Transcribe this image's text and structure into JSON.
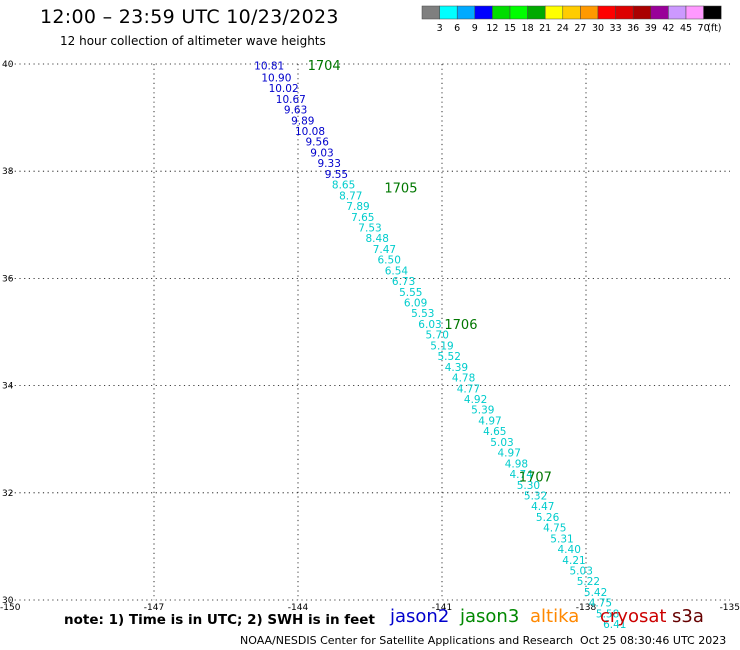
{
  "header": {
    "title": "12:00 – 23:59 UTC 10/23/2023",
    "subtitle": "12 hour collection of altimeter wave heights"
  },
  "color_scale": {
    "labels": [
      "3",
      "6",
      "9",
      "12",
      "15",
      "18",
      "21",
      "24",
      "27",
      "30",
      "33",
      "36",
      "39",
      "42",
      "45",
      "70"
    ],
    "unit": "(ft)",
    "colors": [
      "#7f7f7f",
      "#00ffff",
      "#00aaff",
      "#0000ff",
      "#00dd00",
      "#00ff00",
      "#00aa00",
      "#ffff00",
      "#ffcc00",
      "#ff9900",
      "#ff0000",
      "#dd0000",
      "#aa0000",
      "#990099",
      "#cc99ff",
      "#ff99ff",
      "#000000"
    ]
  },
  "map": {
    "lat_ticks": [
      "40",
      "38",
      "36",
      "34",
      "32",
      "30"
    ],
    "lon_ticks": [
      "-150",
      "-147",
      "-144",
      "-141",
      "-138",
      "-135"
    ],
    "lon_range": [
      -150,
      -135
    ],
    "lat_range": [
      30,
      40
    ],
    "time_labels": [
      {
        "text": "1704",
        "lon": -143.8,
        "lat": 39.98
      },
      {
        "text": "1705",
        "lon": -142.2,
        "lat": 37.7
      },
      {
        "text": "1706",
        "lon": -140.95,
        "lat": 35.15
      },
      {
        "text": "1707",
        "lon": -139.4,
        "lat": 32.3
      }
    ],
    "time_label_color": "#007700",
    "observations": [
      {
        "v": "10.81",
        "lon": -144.6,
        "lat": 39.97,
        "c": "#0000cc"
      },
      {
        "v": "10.90",
        "lon": -144.45,
        "lat": 39.75,
        "c": "#0000cc"
      },
      {
        "v": "10.02",
        "lon": -144.3,
        "lat": 39.55,
        "c": "#0000cc"
      },
      {
        "v": "10.67",
        "lon": -144.15,
        "lat": 39.35,
        "c": "#0000cc"
      },
      {
        "v": "9.63",
        "lon": -144.05,
        "lat": 39.15,
        "c": "#0000cc"
      },
      {
        "v": "9.89",
        "lon": -143.9,
        "lat": 38.95,
        "c": "#0000cc"
      },
      {
        "v": "10.08",
        "lon": -143.75,
        "lat": 38.75,
        "c": "#0000cc"
      },
      {
        "v": "9.56",
        "lon": -143.6,
        "lat": 38.55,
        "c": "#0000cc"
      },
      {
        "v": "9.03",
        "lon": -143.5,
        "lat": 38.35,
        "c": "#0000cc"
      },
      {
        "v": "9.33",
        "lon": -143.35,
        "lat": 38.15,
        "c": "#0000cc"
      },
      {
        "v": "9.55",
        "lon": -143.2,
        "lat": 37.95,
        "c": "#0000cc"
      },
      {
        "v": "8.65",
        "lon": -143.05,
        "lat": 37.75,
        "c": "#00cccc"
      },
      {
        "v": "8.77",
        "lon": -142.9,
        "lat": 37.55,
        "c": "#00cccc"
      },
      {
        "v": "7.89",
        "lon": -142.75,
        "lat": 37.35,
        "c": "#00cccc"
      },
      {
        "v": "7.65",
        "lon": -142.65,
        "lat": 37.15,
        "c": "#00cccc"
      },
      {
        "v": "7.53",
        "lon": -142.5,
        "lat": 36.95,
        "c": "#00cccc"
      },
      {
        "v": "8.48",
        "lon": -142.35,
        "lat": 36.75,
        "c": "#00cccc"
      },
      {
        "v": "7.47",
        "lon": -142.2,
        "lat": 36.55,
        "c": "#00cccc"
      },
      {
        "v": "6.50",
        "lon": -142.1,
        "lat": 36.35,
        "c": "#00cccc"
      },
      {
        "v": "6.54",
        "lon": -141.95,
        "lat": 36.15,
        "c": "#00cccc"
      },
      {
        "v": "6.73",
        "lon": -141.8,
        "lat": 35.95,
        "c": "#00cccc"
      },
      {
        "v": "5.55",
        "lon": -141.65,
        "lat": 35.75,
        "c": "#00cccc"
      },
      {
        "v": "6.09",
        "lon": -141.55,
        "lat": 35.55,
        "c": "#00cccc"
      },
      {
        "v": "5.53",
        "lon": -141.4,
        "lat": 35.35,
        "c": "#00cccc"
      },
      {
        "v": "6.03",
        "lon": -141.25,
        "lat": 35.15,
        "c": "#00cccc"
      },
      {
        "v": "5.70",
        "lon": -141.1,
        "lat": 34.95,
        "c": "#00cccc"
      },
      {
        "v": "5.19",
        "lon": -141.0,
        "lat": 34.75,
        "c": "#00cccc"
      },
      {
        "v": "5.52",
        "lon": -140.85,
        "lat": 34.55,
        "c": "#00cccc"
      },
      {
        "v": "4.39",
        "lon": -140.7,
        "lat": 34.35,
        "c": "#00cccc"
      },
      {
        "v": "4.78",
        "lon": -140.55,
        "lat": 34.15,
        "c": "#00cccc"
      },
      {
        "v": "4.77",
        "lon": -140.45,
        "lat": 33.95,
        "c": "#00cccc"
      },
      {
        "v": "4.92",
        "lon": -140.3,
        "lat": 33.75,
        "c": "#00cccc"
      },
      {
        "v": "5.39",
        "lon": -140.15,
        "lat": 33.55,
        "c": "#00cccc"
      },
      {
        "v": "4.97",
        "lon": -140.0,
        "lat": 33.35,
        "c": "#00cccc"
      },
      {
        "v": "4.65",
        "lon": -139.9,
        "lat": 33.15,
        "c": "#00cccc"
      },
      {
        "v": "5.03",
        "lon": -139.75,
        "lat": 32.95,
        "c": "#00cccc"
      },
      {
        "v": "4.97",
        "lon": -139.6,
        "lat": 32.75,
        "c": "#00cccc"
      },
      {
        "v": "4.98",
        "lon": -139.45,
        "lat": 32.55,
        "c": "#00cccc"
      },
      {
        "v": "4.74",
        "lon": -139.35,
        "lat": 32.35,
        "c": "#00cccc"
      },
      {
        "v": "5.30",
        "lon": -139.2,
        "lat": 32.15,
        "c": "#00cccc"
      },
      {
        "v": "5.32",
        "lon": -139.05,
        "lat": 31.95,
        "c": "#00cccc"
      },
      {
        "v": "4.47",
        "lon": -138.9,
        "lat": 31.75,
        "c": "#00cccc"
      },
      {
        "v": "5.26",
        "lon": -138.8,
        "lat": 31.55,
        "c": "#00cccc"
      },
      {
        "v": "4.75",
        "lon": -138.65,
        "lat": 31.35,
        "c": "#00cccc"
      },
      {
        "v": "5.31",
        "lon": -138.5,
        "lat": 31.15,
        "c": "#00cccc"
      },
      {
        "v": "4.40",
        "lon": -138.35,
        "lat": 30.95,
        "c": "#00cccc"
      },
      {
        "v": "4.21",
        "lon": -138.25,
        "lat": 30.75,
        "c": "#00cccc"
      },
      {
        "v": "5.03",
        "lon": -138.1,
        "lat": 30.55,
        "c": "#00cccc"
      },
      {
        "v": "5.22",
        "lon": -137.95,
        "lat": 30.35,
        "c": "#00cccc"
      },
      {
        "v": "5.42",
        "lon": -137.8,
        "lat": 30.15,
        "c": "#00cccc"
      },
      {
        "v": "4.75",
        "lon": -137.7,
        "lat": 29.95,
        "c": "#00cccc"
      },
      {
        "v": "5.58",
        "lon": -137.55,
        "lat": 29.75,
        "c": "#00cccc"
      },
      {
        "v": "6.41",
        "lon": -137.4,
        "lat": 29.55,
        "c": "#00cccc"
      }
    ]
  },
  "footer": {
    "note": "note: 1) Time is in UTC; 2) SWH is in feet",
    "satellites": [
      {
        "name": "jason2",
        "color": "#0000cc"
      },
      {
        "name": "jason3",
        "color": "#008800"
      },
      {
        "name": "altika",
        "color": "#ff8800"
      },
      {
        "name": "cryosat",
        "color": "#cc0000"
      },
      {
        "name": "s3a",
        "color": "#660000"
      }
    ],
    "credit_left": "NOAA/NESDIS Center for Satellite Applications and Research",
    "credit_right": "Oct 25 08:30:46 UTC 2023"
  }
}
